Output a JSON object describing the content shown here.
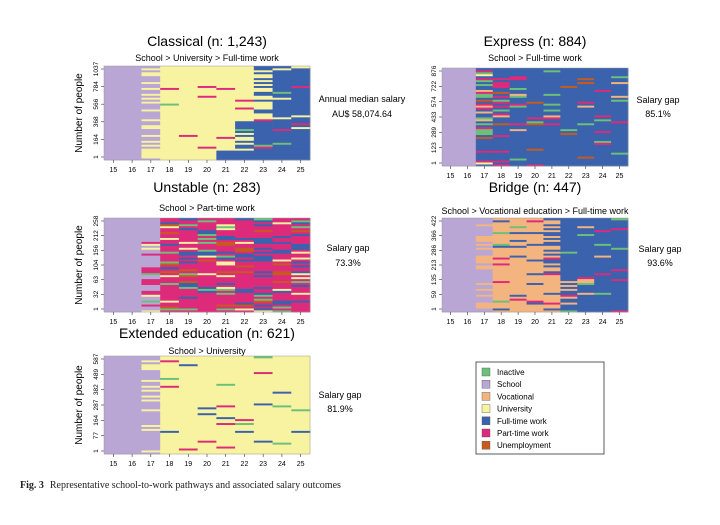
{
  "colors": {
    "Inactive": "#6cc07a",
    "School": "#b9a6d4",
    "Vocational": "#f3b47f",
    "University": "#f7f3a0",
    "Full-time work": "#3a62ad",
    "Part-time work": "#de2a7b",
    "Unemployment": "#c85a1e"
  },
  "legend": {
    "position": "bottom-right",
    "entries": [
      "Inactive",
      "School",
      "Vocational",
      "University",
      "Full-time work",
      "Part-time work",
      "Unemployment"
    ]
  },
  "caption": {
    "label": "Fig. 3",
    "text": "Representative school-to-work pathways and associated salary outcomes"
  },
  "chart_data": [
    {
      "type": "heatmap",
      "title": "Classical (n: 1,243)",
      "subtitle": "School > University > Full-time work",
      "ylabel": "Number of people",
      "x": [
        15,
        16,
        17,
        18,
        19,
        20,
        21,
        22,
        23,
        24,
        25
      ],
      "y_ticks": [
        "1",
        "164",
        "368",
        "566",
        "784",
        "1037"
      ],
      "annotation": [
        "Annual median salary",
        "AU$ 58,074.64"
      ]
    },
    {
      "type": "heatmap",
      "title": "Express (n: 884)",
      "subtitle": "School > Full-time work",
      "ylabel": "",
      "x": [
        15,
        16,
        17,
        18,
        19,
        20,
        21,
        22,
        23,
        24,
        25
      ],
      "y_ticks": [
        "1",
        "123",
        "289",
        "433",
        "574",
        "722",
        "876"
      ],
      "annotation": [
        "Salary gap",
        "85.1%"
      ]
    },
    {
      "type": "heatmap",
      "title": "Unstable (n: 283)",
      "subtitle": "School > Part-time work",
      "ylabel": "Number of people",
      "x": [
        15,
        16,
        17,
        18,
        19,
        20,
        21,
        22,
        23,
        24,
        25
      ],
      "y_ticks": [
        "1",
        "32",
        "63",
        "104",
        "156",
        "212",
        "258"
      ],
      "annotation": [
        "Salary gap",
        "73.3%"
      ]
    },
    {
      "type": "heatmap",
      "title": "Bridge (n: 447)",
      "subtitle": "School > Vocational education > Full-time work",
      "ylabel": "",
      "x": [
        15,
        16,
        17,
        18,
        19,
        20,
        21,
        22,
        23,
        24,
        25
      ],
      "y_ticks": [
        "1",
        "59",
        "135",
        "213",
        "286",
        "366",
        "422"
      ],
      "annotation": [
        "Salary gap",
        "93.6%"
      ]
    },
    {
      "type": "heatmap",
      "title": "Extended education (n: 621)",
      "subtitle": "School >  University",
      "ylabel": "Number of people",
      "x": [
        15,
        16,
        17,
        18,
        19,
        20,
        21,
        22,
        23,
        24,
        25
      ],
      "y_ticks": [
        "1",
        "77",
        "164",
        "287",
        "382",
        "489",
        "587"
      ],
      "annotation": [
        "Salary gap",
        "81.9%"
      ]
    }
  ]
}
